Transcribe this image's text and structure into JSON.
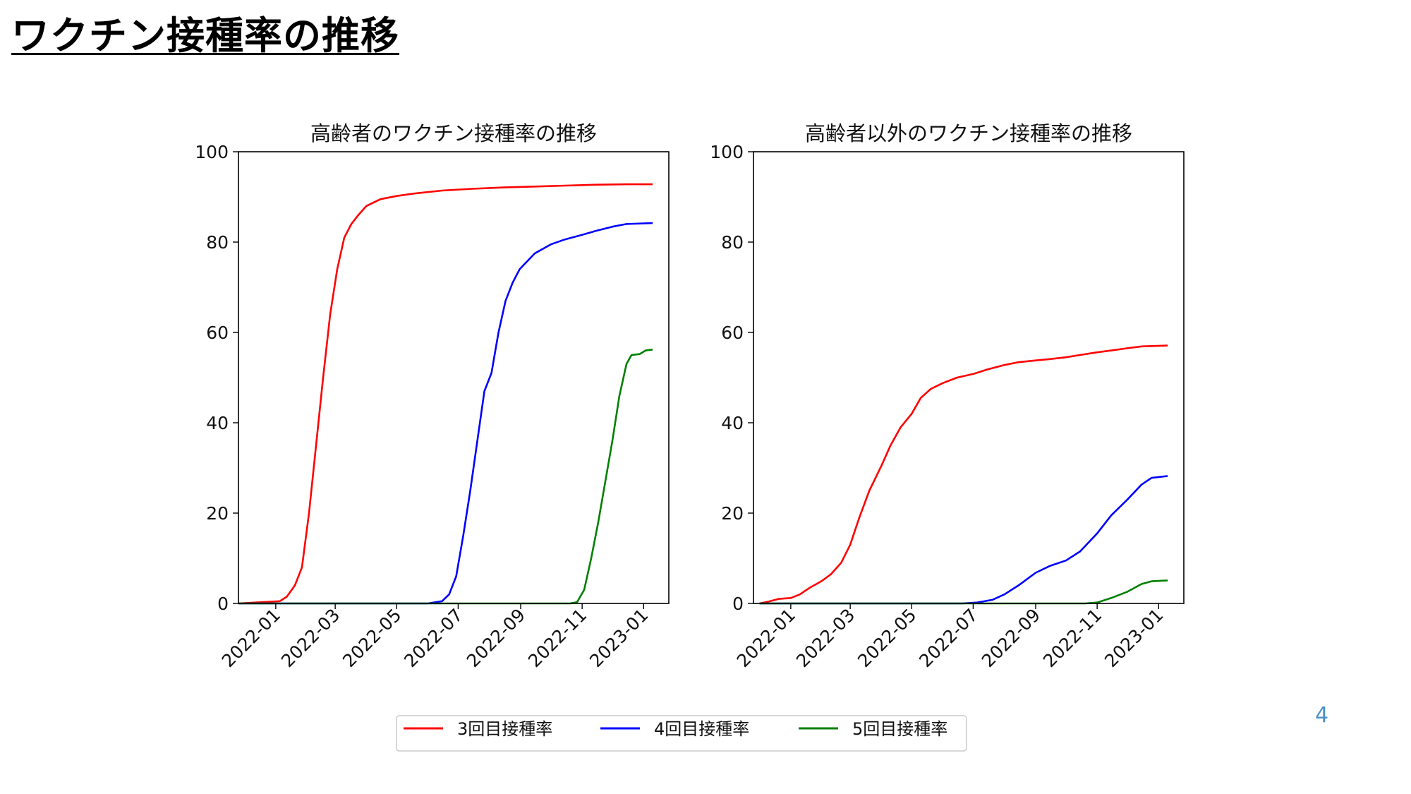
{
  "slide": {
    "title": "ワクチン接種率の推移",
    "page_number": "4"
  },
  "legend": {
    "location": "bottom-center",
    "items": [
      {
        "label": "3回目接種率",
        "color": "#ff0000"
      },
      {
        "label": "4回目接種率",
        "color": "#0000ff"
      },
      {
        "label": "5回目接種率",
        "color": "#008000"
      }
    ]
  },
  "chart_data": [
    {
      "type": "line",
      "title": "高齢者のワクチン接種率の推移",
      "xlabel": "",
      "ylabel": "",
      "xlim": [
        "2021-11-25",
        "2023-01-26"
      ],
      "ylim": [
        0,
        100
      ],
      "yticks": [
        0,
        20,
        40,
        60,
        80,
        100
      ],
      "xticks": [
        "2022-01",
        "2022-03",
        "2022-05",
        "2022-07",
        "2022-09",
        "2022-11",
        "2023-01"
      ],
      "grid": false,
      "series": [
        {
          "name": "3回目接種率",
          "color": "#ff0000",
          "points": [
            [
              "2021-11-25",
              0
            ],
            [
              "2021-12-20",
              0.3
            ],
            [
              "2022-01-05",
              0.5
            ],
            [
              "2022-01-12",
              1.5
            ],
            [
              "2022-01-20",
              4
            ],
            [
              "2022-01-27",
              8
            ],
            [
              "2022-02-03",
              20
            ],
            [
              "2022-02-10",
              35
            ],
            [
              "2022-02-17",
              50
            ],
            [
              "2022-02-24",
              64
            ],
            [
              "2022-03-03",
              74
            ],
            [
              "2022-03-10",
              81
            ],
            [
              "2022-03-17",
              84
            ],
            [
              "2022-03-24",
              86
            ],
            [
              "2022-04-01",
              88
            ],
            [
              "2022-04-15",
              89.5
            ],
            [
              "2022-05-01",
              90.2
            ],
            [
              "2022-05-20",
              90.8
            ],
            [
              "2022-06-15",
              91.4
            ],
            [
              "2022-07-15",
              91.8
            ],
            [
              "2022-08-15",
              92.1
            ],
            [
              "2022-09-15",
              92.3
            ],
            [
              "2022-10-15",
              92.5
            ],
            [
              "2022-11-15",
              92.7
            ],
            [
              "2022-12-15",
              92.8
            ],
            [
              "2023-01-10",
              92.8
            ]
          ]
        },
        {
          "name": "4回目接種率",
          "color": "#0000ff",
          "points": [
            [
              "2021-11-25",
              0
            ],
            [
              "2022-06-01",
              0
            ],
            [
              "2022-06-15",
              0.5
            ],
            [
              "2022-06-22",
              2
            ],
            [
              "2022-06-29",
              6
            ],
            [
              "2022-07-06",
              15
            ],
            [
              "2022-07-13",
              25
            ],
            [
              "2022-07-20",
              36
            ],
            [
              "2022-07-27",
              47
            ],
            [
              "2022-08-03",
              51
            ],
            [
              "2022-08-10",
              60
            ],
            [
              "2022-08-17",
              67
            ],
            [
              "2022-08-24",
              71
            ],
            [
              "2022-08-31",
              74
            ],
            [
              "2022-09-15",
              77.5
            ],
            [
              "2022-10-01",
              79.5
            ],
            [
              "2022-10-15",
              80.6
            ],
            [
              "2022-11-01",
              81.6
            ],
            [
              "2022-11-15",
              82.5
            ],
            [
              "2022-12-01",
              83.4
            ],
            [
              "2022-12-15",
              84
            ],
            [
              "2023-01-10",
              84.2
            ]
          ]
        },
        {
          "name": "5回目接種率",
          "color": "#008000",
          "points": [
            [
              "2021-11-25",
              0
            ],
            [
              "2022-10-20",
              0
            ],
            [
              "2022-10-27",
              0.3
            ],
            [
              "2022-11-03",
              3
            ],
            [
              "2022-11-10",
              10
            ],
            [
              "2022-11-17",
              18
            ],
            [
              "2022-11-24",
              27
            ],
            [
              "2022-12-01",
              36
            ],
            [
              "2022-12-08",
              46
            ],
            [
              "2022-12-15",
              53
            ],
            [
              "2022-12-20",
              55
            ],
            [
              "2022-12-28",
              55.2
            ],
            [
              "2023-01-03",
              56
            ],
            [
              "2023-01-10",
              56.2
            ]
          ]
        }
      ]
    },
    {
      "type": "line",
      "title": "高齢者以外のワクチン接種率の推移",
      "xlabel": "",
      "ylabel": "",
      "xlim": [
        "2021-11-25",
        "2023-01-26"
      ],
      "ylim": [
        0,
        100
      ],
      "yticks": [
        0,
        20,
        40,
        60,
        80,
        100
      ],
      "xticks": [
        "2022-01",
        "2022-03",
        "2022-05",
        "2022-07",
        "2022-09",
        "2022-11",
        "2023-01"
      ],
      "grid": false,
      "series": [
        {
          "name": "3回目接種率",
          "color": "#ff0000",
          "points": [
            [
              "2021-12-01",
              0
            ],
            [
              "2021-12-10",
              0.4
            ],
            [
              "2021-12-20",
              1
            ],
            [
              "2022-01-01",
              1.2
            ],
            [
              "2022-01-10",
              2
            ],
            [
              "2022-01-20",
              3.5
            ],
            [
              "2022-02-01",
              5
            ],
            [
              "2022-02-10",
              6.5
            ],
            [
              "2022-02-20",
              9
            ],
            [
              "2022-03-01",
              13
            ],
            [
              "2022-03-10",
              19
            ],
            [
              "2022-03-20",
              25
            ],
            [
              "2022-04-01",
              30.5
            ],
            [
              "2022-04-10",
              35
            ],
            [
              "2022-04-20",
              39
            ],
            [
              "2022-05-01",
              42
            ],
            [
              "2022-05-10",
              45.5
            ],
            [
              "2022-05-20",
              47.5
            ],
            [
              "2022-06-01",
              48.8
            ],
            [
              "2022-06-15",
              50
            ],
            [
              "2022-07-01",
              50.8
            ],
            [
              "2022-07-15",
              51.8
            ],
            [
              "2022-08-01",
              52.8
            ],
            [
              "2022-08-15",
              53.4
            ],
            [
              "2022-09-01",
              53.8
            ],
            [
              "2022-09-15",
              54.1
            ],
            [
              "2022-10-01",
              54.5
            ],
            [
              "2022-10-15",
              55
            ],
            [
              "2022-11-01",
              55.6
            ],
            [
              "2022-11-15",
              56
            ],
            [
              "2022-12-01",
              56.5
            ],
            [
              "2022-12-15",
              56.9
            ],
            [
              "2023-01-10",
              57.1
            ]
          ]
        },
        {
          "name": "4回目接種率",
          "color": "#0000ff",
          "points": [
            [
              "2021-12-01",
              0
            ],
            [
              "2022-06-20",
              0
            ],
            [
              "2022-07-05",
              0.2
            ],
            [
              "2022-07-20",
              0.8
            ],
            [
              "2022-08-01",
              2
            ],
            [
              "2022-08-15",
              4
            ],
            [
              "2022-09-01",
              6.8
            ],
            [
              "2022-09-15",
              8.3
            ],
            [
              "2022-10-01",
              9.5
            ],
            [
              "2022-10-15",
              11.5
            ],
            [
              "2022-11-01",
              15.5
            ],
            [
              "2022-11-15",
              19.5
            ],
            [
              "2022-12-01",
              23
            ],
            [
              "2022-12-15",
              26.3
            ],
            [
              "2022-12-25",
              27.8
            ],
            [
              "2023-01-10",
              28.2
            ]
          ]
        },
        {
          "name": "5回目接種率",
          "color": "#008000",
          "points": [
            [
              "2021-12-01",
              0
            ],
            [
              "2022-10-20",
              0
            ],
            [
              "2022-11-01",
              0.2
            ],
            [
              "2022-11-15",
              1.2
            ],
            [
              "2022-12-01",
              2.6
            ],
            [
              "2022-12-15",
              4.3
            ],
            [
              "2022-12-25",
              4.9
            ],
            [
              "2023-01-10",
              5.1
            ]
          ]
        }
      ]
    }
  ]
}
